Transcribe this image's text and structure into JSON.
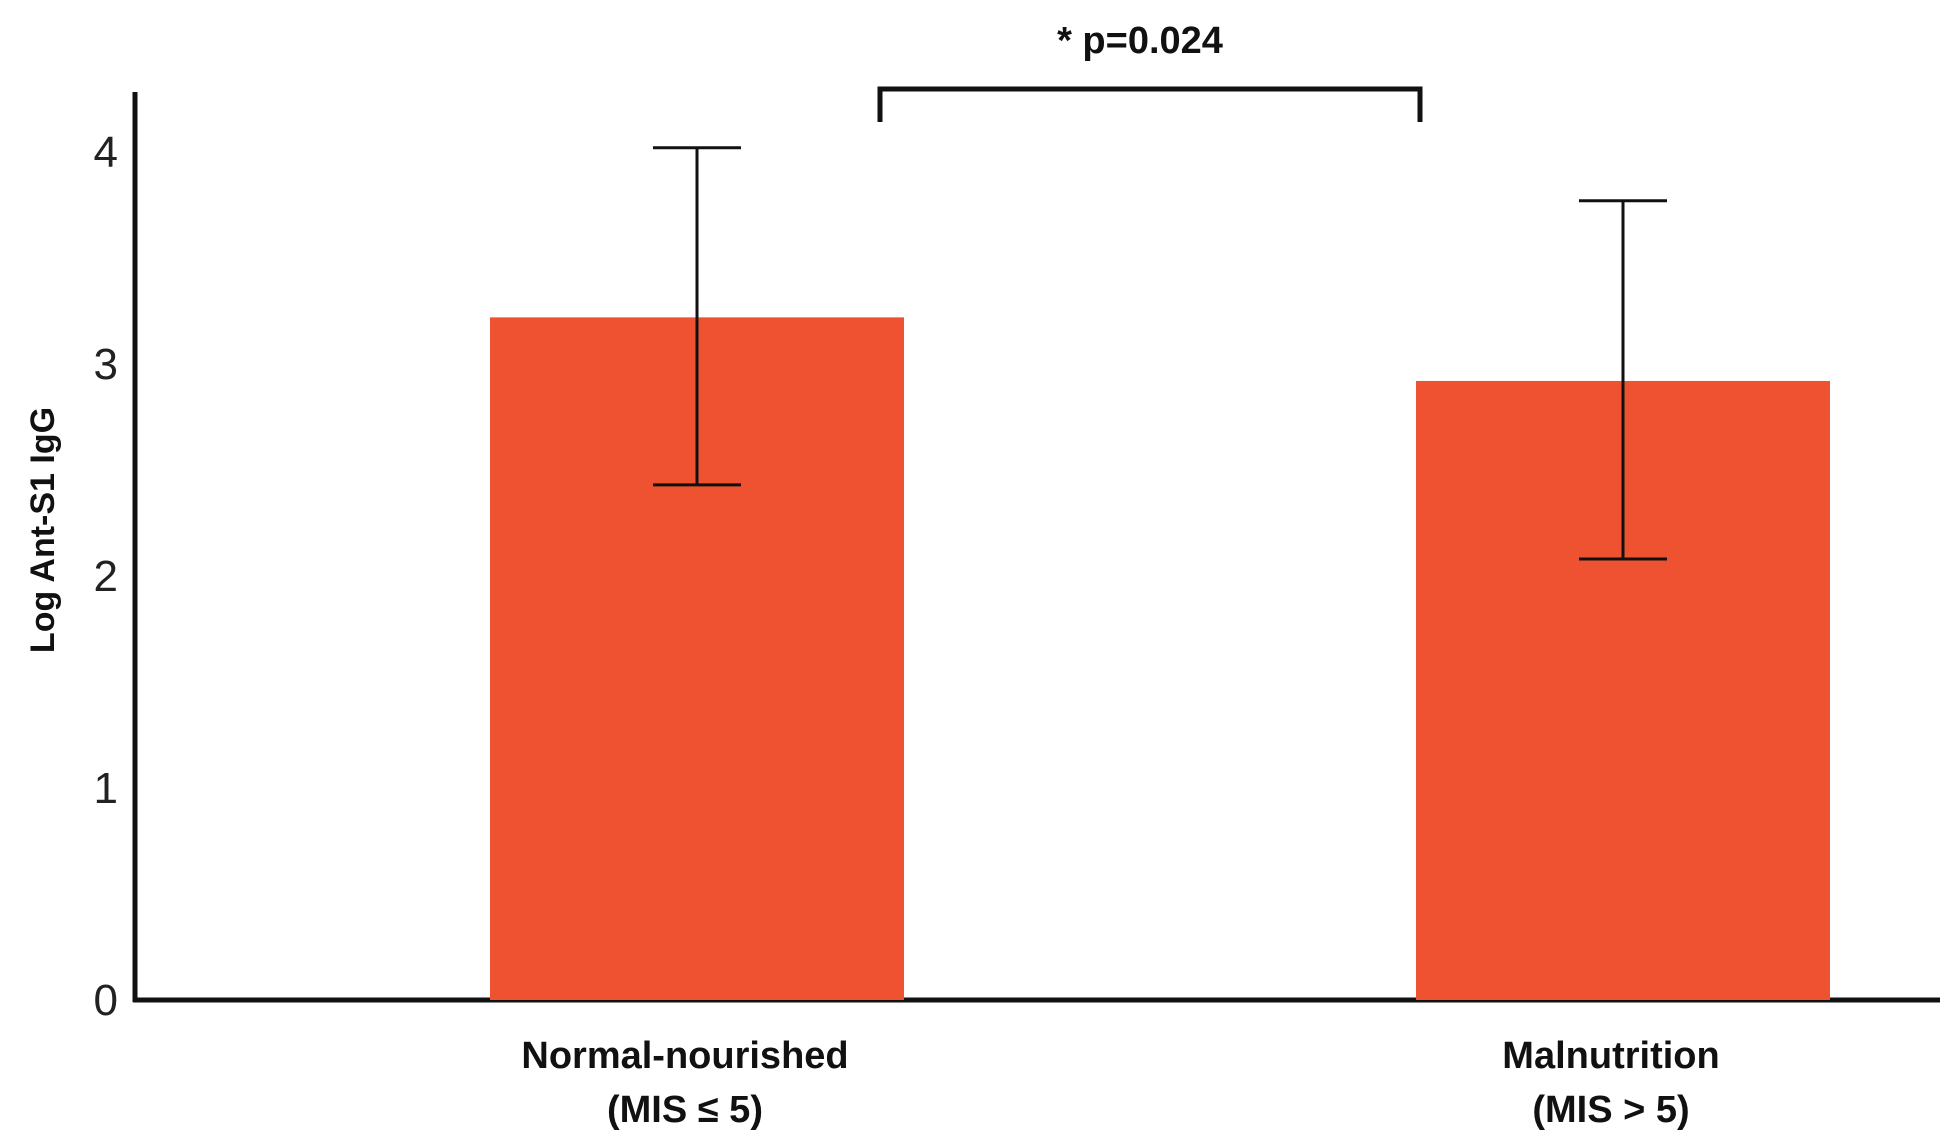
{
  "chart_data": {
    "type": "bar",
    "title": "",
    "xlabel": "",
    "ylabel": "Log Ant-S1 IgG",
    "ylim": [
      0,
      4.3
    ],
    "yticks": [
      0,
      1,
      2,
      3,
      4
    ],
    "grid": false,
    "bar_color": "#EE5230",
    "categories": [
      {
        "line1": "Normal-nourished",
        "line2": "(MIS ≤ 5)"
      },
      {
        "line1": "Malnutrition",
        "line2": "(MIS > 5)"
      }
    ],
    "values": [
      3.22,
      2.92
    ],
    "error_bars": [
      {
        "low": 2.43,
        "high": 4.02
      },
      {
        "low": 2.08,
        "high": 3.77
      }
    ],
    "annotations": [
      {
        "text": "* p=0.024",
        "type": "significance-bracket",
        "between": [
          0,
          1
        ]
      }
    ]
  }
}
